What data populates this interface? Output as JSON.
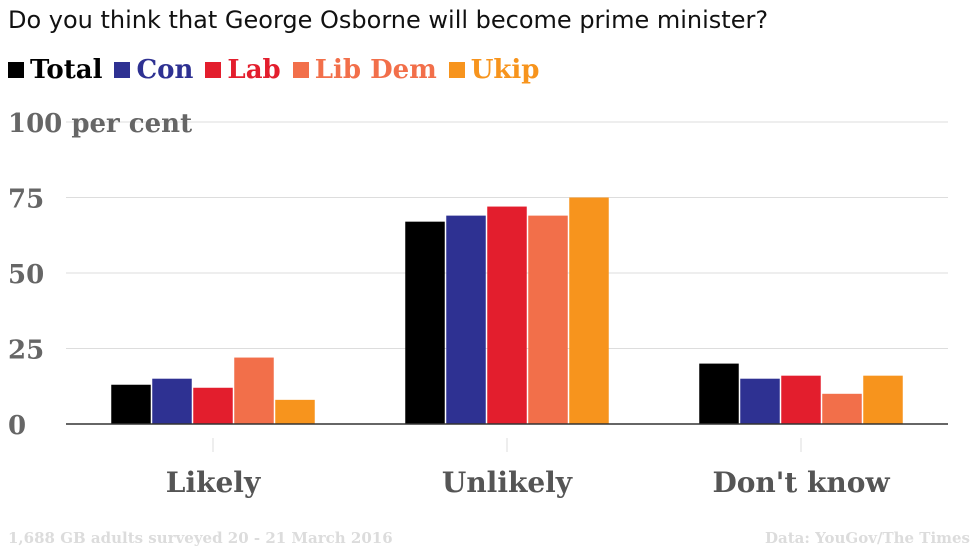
{
  "title": "Do you think that George Osborne will become prime minister?",
  "chart_data": {
    "type": "bar",
    "categories": [
      "Likely",
      "Unlikely",
      "Don't know"
    ],
    "series": [
      {
        "name": "Total",
        "color": "#000000",
        "values": [
          13,
          67,
          20
        ]
      },
      {
        "name": "Con",
        "color": "#2e3192",
        "values": [
          15,
          69,
          15
        ]
      },
      {
        "name": "Lab",
        "color": "#e31e2d",
        "values": [
          12,
          72,
          16
        ]
      },
      {
        "name": "Lib Dem",
        "color": "#f26f4a",
        "values": [
          22,
          69,
          10
        ]
      },
      {
        "name": "Ukip",
        "color": "#f7941d",
        "values": [
          8,
          75,
          16
        ]
      }
    ],
    "ylim": [
      0,
      100
    ],
    "yticks": [
      0,
      25,
      50,
      75,
      100
    ],
    "ytick_labels": [
      "0",
      "25",
      "50",
      "75",
      "100 per cent"
    ],
    "grid": true,
    "legend_position": "top-left"
  },
  "footer": {
    "left": "1,688 GB adults surveyed 20 - 21 March 2016",
    "right": "Data: YouGov/The Times"
  }
}
